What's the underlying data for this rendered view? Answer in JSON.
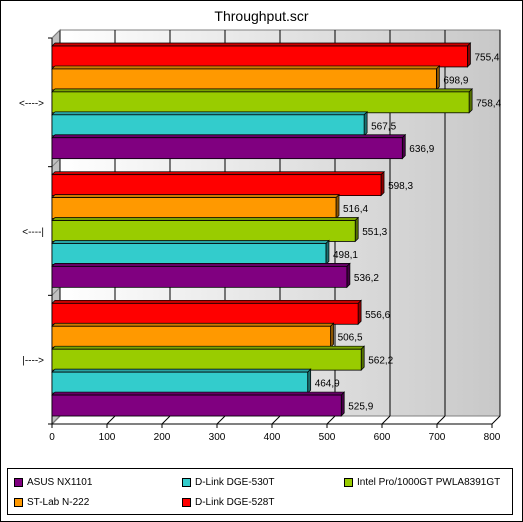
{
  "chart_data": {
    "type": "bar",
    "orientation": "horizontal",
    "title": "Throughput.scr",
    "categories": [
      "<---->",
      "<----|",
      "|---->"
    ],
    "xlim": [
      0,
      800
    ],
    "xticks": [
      0,
      100,
      200,
      300,
      400,
      500,
      600,
      700,
      800
    ],
    "grid": true,
    "legend_position": "bottom",
    "series": [
      {
        "name": "D-Link DGE-528T",
        "color": "#ff0000",
        "values": [
          755.4,
          598.3,
          556.6
        ],
        "labels": [
          "755,4",
          "598,3",
          "556,6"
        ]
      },
      {
        "name": "ST-Lab N-222",
        "color": "#ff9900",
        "values": [
          698.9,
          516.4,
          506.5
        ],
        "labels": [
          "698,9",
          "516,4",
          "506,5"
        ]
      },
      {
        "name": "Intel Pro/1000GT PWLA8391GT",
        "color": "#99cc00",
        "values": [
          758.4,
          551.3,
          562.2
        ],
        "labels": [
          "758,4",
          "551,3",
          "562,2"
        ]
      },
      {
        "name": "D-Link DGE-530T",
        "color": "#33cccc",
        "values": [
          567.5,
          498.1,
          464.9
        ],
        "labels": [
          "567,5",
          "498,1",
          "464,9"
        ]
      },
      {
        "name": "ASUS NX1101",
        "color": "#800080",
        "values": [
          636.9,
          536.2,
          525.9
        ],
        "labels": [
          "636,9",
          "536,2",
          "525,9"
        ]
      }
    ],
    "legend_order": [
      "ASUS NX1101",
      "D-Link DGE-530T",
      "Intel Pro/1000GT PWLA8391GT",
      "ST-Lab N-222",
      "D-Link DGE-528T"
    ]
  }
}
